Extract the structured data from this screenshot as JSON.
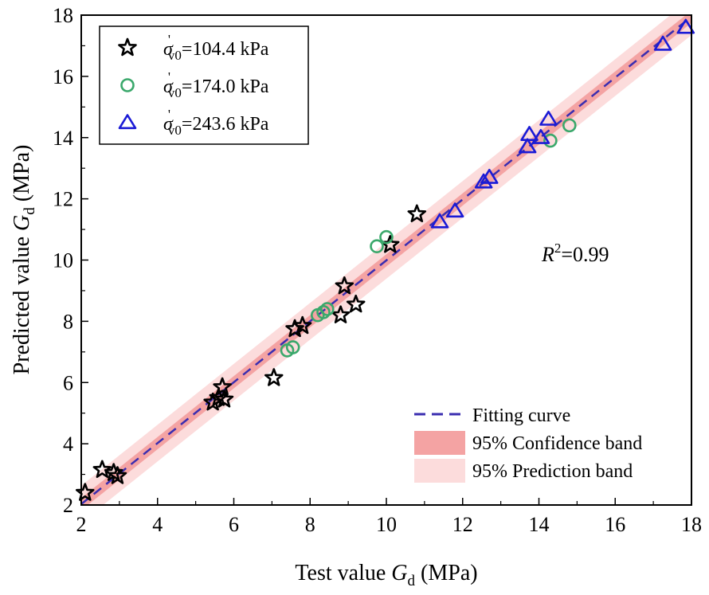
{
  "chart_data": {
    "type": "scatter",
    "xlabel": {
      "prefix": "Test value ",
      "symbol": "G",
      "sub": "d",
      "unit": " (MPa)"
    },
    "ylabel": {
      "prefix": "Predicted value ",
      "symbol": "G",
      "sub": "d",
      "unit": " (MPa)"
    },
    "xlim": [
      2,
      18
    ],
    "ylim": [
      2,
      18
    ],
    "xticks": [
      2,
      4,
      6,
      8,
      10,
      12,
      14,
      16,
      18
    ],
    "yticks": [
      2,
      4,
      6,
      8,
      10,
      12,
      14,
      16,
      18
    ],
    "grid": false,
    "legend_position": "top-left",
    "annotation": {
      "text": "R",
      "sup": "2",
      "rest": "=0.99"
    },
    "fit": {
      "slope": 0.995,
      "intercept": 0.04
    },
    "confidence_halfwidth": 0.2,
    "prediction_halfwidth": 0.6,
    "series": [
      {
        "name": "=104.4 kPa",
        "symbol": "σ",
        "sup": "'",
        "sub": "v0",
        "marker": "star",
        "color": "#000000",
        "points": [
          [
            2.1,
            2.4
          ],
          [
            2.55,
            3.15
          ],
          [
            2.85,
            3.05
          ],
          [
            2.95,
            2.95
          ],
          [
            5.45,
            5.35
          ],
          [
            5.6,
            5.5
          ],
          [
            5.7,
            5.85
          ],
          [
            5.75,
            5.45
          ],
          [
            7.05,
            6.15
          ],
          [
            7.6,
            7.75
          ],
          [
            7.8,
            7.85
          ],
          [
            8.8,
            8.2
          ],
          [
            8.9,
            9.15
          ],
          [
            9.2,
            8.55
          ],
          [
            10.1,
            10.5
          ],
          [
            10.8,
            11.5
          ]
        ]
      },
      {
        "name": "=174.0 kPa",
        "symbol": "σ",
        "sup": "'",
        "sub": "v0",
        "marker": "circle",
        "color": "#3aa86b",
        "points": [
          [
            7.4,
            7.05
          ],
          [
            7.55,
            7.15
          ],
          [
            8.2,
            8.2
          ],
          [
            8.35,
            8.3
          ],
          [
            8.45,
            8.4
          ],
          [
            9.75,
            10.45
          ],
          [
            10.0,
            10.75
          ],
          [
            14.3,
            13.9
          ],
          [
            14.8,
            14.4
          ]
        ]
      },
      {
        "name": "=243.6 kPa",
        "symbol": "σ",
        "sup": "'",
        "sub": "v0",
        "marker": "triangle",
        "color": "#1a1ad6",
        "points": [
          [
            11.4,
            11.25
          ],
          [
            11.8,
            11.6
          ],
          [
            12.55,
            12.55
          ],
          [
            12.7,
            12.7
          ],
          [
            13.7,
            13.7
          ],
          [
            13.75,
            14.1
          ],
          [
            14.05,
            14.0
          ],
          [
            14.25,
            14.6
          ],
          [
            17.25,
            17.05
          ],
          [
            17.85,
            17.6
          ]
        ]
      }
    ],
    "legend2": [
      {
        "label": "Fitting curve",
        "kind": "line",
        "color": "#3a2db0"
      },
      {
        "label": "95% Confidence band",
        "kind": "patch",
        "color": "#f4a3a3"
      },
      {
        "label": "95% Prediction band",
        "kind": "patch",
        "color": "#fcdcdc"
      }
    ]
  }
}
